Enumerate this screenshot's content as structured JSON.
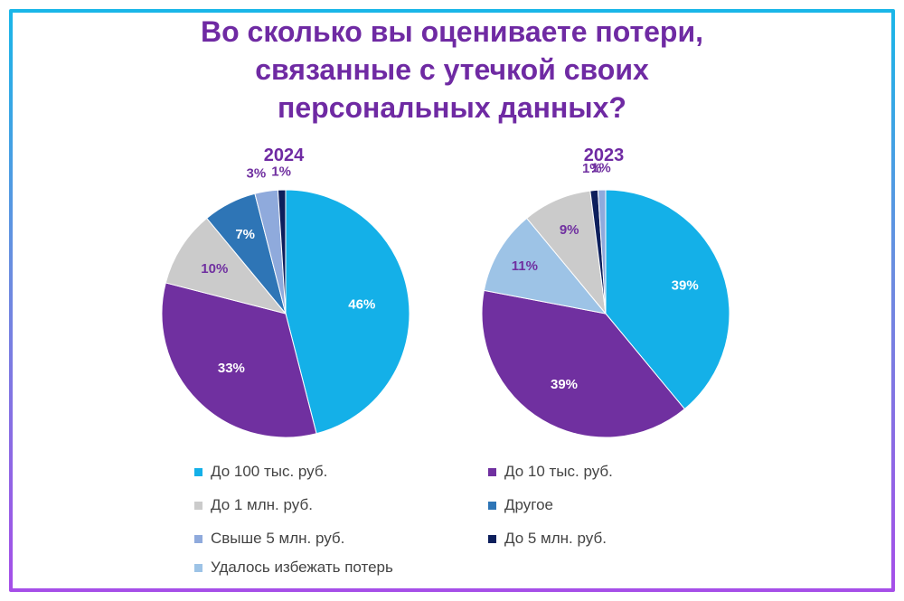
{
  "title_lines": [
    "Во сколько вы оцениваете потери,",
    "связанные с утечкой своих",
    "персональных данных?"
  ],
  "chart_data": [
    {
      "type": "pie",
      "title": "2024",
      "slices": [
        {
          "label": "До 100 тыс. руб.",
          "value": 46,
          "text": "46%",
          "color": "#14b0e8",
          "label_color": "#ffffff"
        },
        {
          "label": "До 10 тыс. руб.",
          "value": 33,
          "text": "33%",
          "color": "#7030a0",
          "label_color": "#ffffff"
        },
        {
          "label": "До 1 млн. руб.",
          "value": 10,
          "text": "10%",
          "color": "#cbcbcb",
          "label_color": "#7030a0"
        },
        {
          "label": "Другое",
          "value": 7,
          "text": "7%",
          "color": "#2e75b6",
          "label_color": "#ffffff"
        },
        {
          "label": "Свыше 5 млн. руб.",
          "value": 3,
          "text": "3%",
          "color": "#8faadc",
          "label_color": "#7030a0"
        },
        {
          "label": "До 5 млн. руб.",
          "value": 1,
          "text": "1%",
          "color": "#0d1f5c",
          "label_color": "#7030a0"
        }
      ]
    },
    {
      "type": "pie",
      "title": "2023",
      "slices": [
        {
          "label": "До 100 тыс. руб.",
          "value": 39,
          "text": "39%",
          "color": "#14b0e8",
          "label_color": "#ffffff"
        },
        {
          "label": "До 10 тыс. руб.",
          "value": 39,
          "text": "39%",
          "color": "#7030a0",
          "label_color": "#ffffff"
        },
        {
          "label": "Удалось избежать потерь",
          "value": 11,
          "text": "11%",
          "color": "#9dc3e6",
          "label_color": "#7030a0"
        },
        {
          "label": "До 1 млн. руб.",
          "value": 9,
          "text": "9%",
          "color": "#cbcbcb",
          "label_color": "#7030a0"
        },
        {
          "label": "До 5 млн. руб.",
          "value": 1,
          "text": "1%",
          "color": "#0d1f5c",
          "label_color": "#7030a0"
        },
        {
          "label": "Свыше 5 млн. руб.",
          "value": 1,
          "text": "1%",
          "color": "#8faadc",
          "label_color": "#7030a0"
        }
      ]
    }
  ],
  "legend": [
    {
      "label": "До 100 тыс. руб.",
      "color": "#14b0e8"
    },
    {
      "label": "До 10 тыс. руб.",
      "color": "#7030a0"
    },
    {
      "label": "До 1 млн. руб.",
      "color": "#cbcbcb"
    },
    {
      "label": "Другое",
      "color": "#2e75b6"
    },
    {
      "label": "Свыше 5 млн. руб.",
      "color": "#8faadc"
    },
    {
      "label": "До 5 млн. руб.",
      "color": "#0d1f5c"
    },
    {
      "label": "Удалось избежать потерь",
      "color": "#9dc3e6"
    }
  ],
  "colors": {
    "title": "#6f2aa3",
    "legend_text": "#444444"
  }
}
